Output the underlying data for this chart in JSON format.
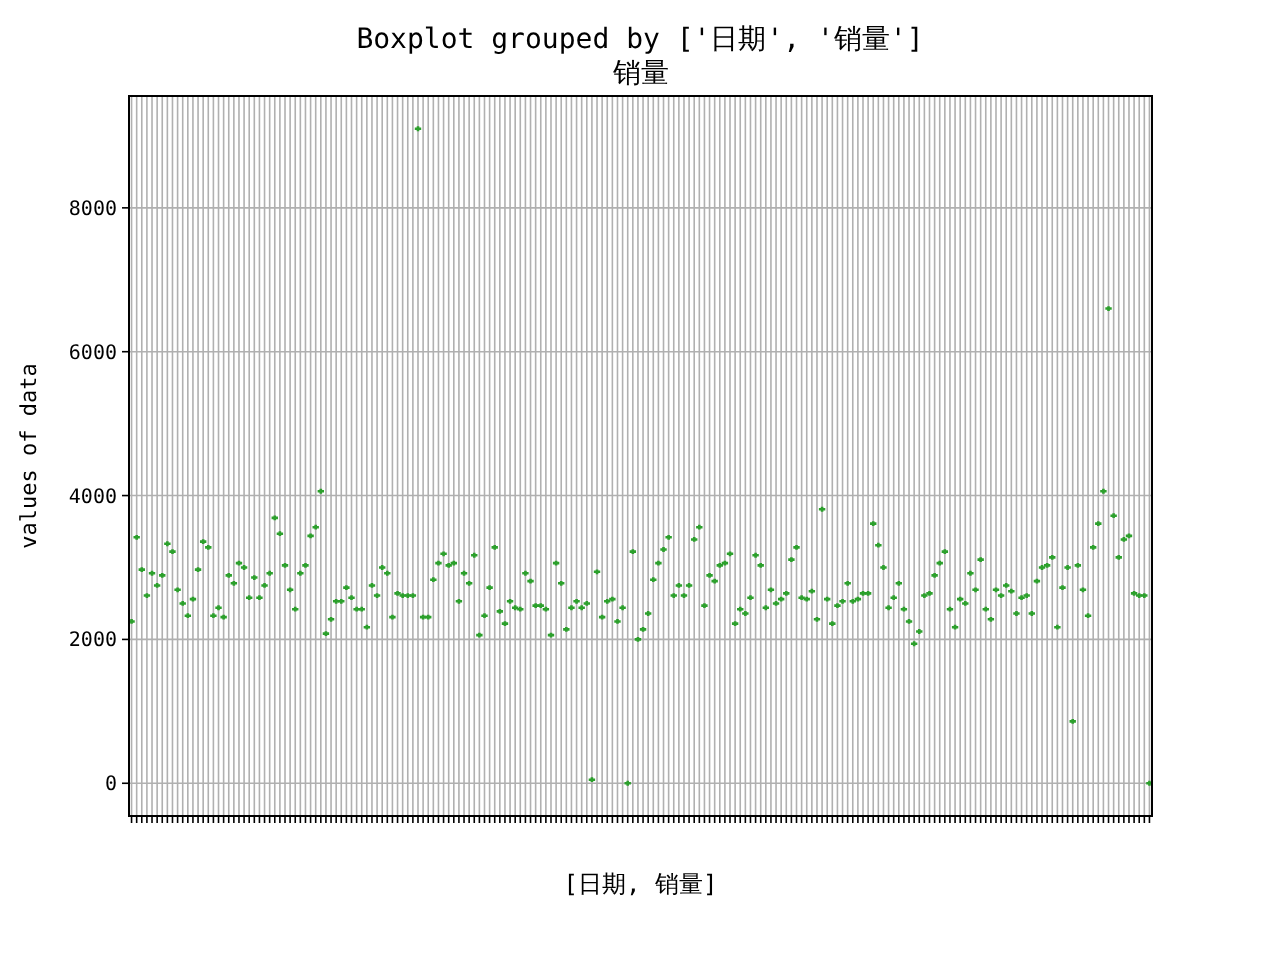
{
  "chart_data": {
    "type": "scatter",
    "title": "Boxplot grouped by ['日期', '销量']",
    "subtitle": "销量",
    "xlabel": "[日期, 销量]",
    "ylabel": "values of data",
    "categories": [
      null,
      null,
      null,
      null,
      null,
      null,
      null,
      null,
      null,
      null,
      null,
      null,
      null,
      null,
      null,
      null,
      null,
      null,
      null,
      null,
      null,
      null,
      null,
      null,
      null,
      null,
      null,
      null,
      null,
      null,
      null,
      null,
      null,
      null,
      null,
      null,
      null,
      null,
      null,
      null,
      null,
      null,
      null,
      null,
      null,
      null,
      null,
      null,
      null,
      null,
      null,
      null,
      null,
      null,
      null,
      null,
      null,
      null,
      null,
      null,
      null,
      null,
      null,
      null,
      null,
      null,
      null,
      null,
      null,
      null,
      null,
      null,
      null,
      null,
      null,
      null,
      null,
      null,
      null,
      null,
      null,
      null,
      null,
      null,
      null,
      null,
      null,
      null,
      null,
      null,
      null,
      null,
      null,
      null,
      null,
      null,
      null,
      null,
      null,
      null,
      null,
      null,
      null,
      null,
      null,
      null,
      null,
      null,
      null,
      null,
      null,
      null,
      null,
      null,
      null,
      null,
      null,
      null,
      null,
      null,
      null,
      null,
      null,
      null,
      null,
      null,
      null,
      null,
      null,
      null,
      null,
      null,
      null,
      null,
      null,
      null,
      null,
      null,
      null,
      null,
      null,
      null,
      null,
      null,
      null,
      null,
      null,
      null,
      null,
      null,
      null,
      null,
      null,
      null,
      null,
      null,
      null,
      null,
      null,
      null,
      null,
      null,
      null,
      null,
      null,
      null,
      null,
      null,
      null,
      null,
      null,
      null,
      null,
      null,
      null,
      null,
      null,
      null,
      null,
      null,
      null,
      null,
      null,
      null,
      null,
      null,
      null,
      null,
      null,
      null,
      null,
      null,
      null,
      null,
      null,
      null,
      null,
      null,
      null,
      null
    ],
    "values": [
      2250,
      3420,
      2970,
      2610,
      2920,
      2750,
      2890,
      3330,
      3220,
      2690,
      2500,
      2330,
      2560,
      2970,
      3360,
      3280,
      2330,
      2440,
      2310,
      2890,
      2780,
      3060,
      3000,
      2580,
      2860,
      2580,
      2750,
      2920,
      3690,
      3470,
      3030,
      2690,
      2420,
      2920,
      3030,
      3440,
      3560,
      4060,
      2080,
      2280,
      2530,
      2530,
      2720,
      2580,
      2420,
      2420,
      2170,
      2750,
      2610,
      3000,
      2920,
      2310,
      2640,
      2610,
      2610,
      2610,
      9100,
      2310,
      2310,
      2830,
      3060,
      3190,
      3030,
      3060,
      2530,
      2920,
      2780,
      3170,
      2060,
      2330,
      2720,
      3280,
      2390,
      2220,
      2530,
      2440,
      2420,
      2920,
      2810,
      2470,
      2470,
      2420,
      2060,
      3060,
      2780,
      2140,
      2440,
      2530,
      2440,
      2500,
      50,
      2940,
      2310,
      2530,
      2560,
      2250,
      2440,
      0,
      3220,
      2000,
      2140,
      2360,
      2830,
      3060,
      3250,
      3420,
      2610,
      2750,
      2610,
      2750,
      3390,
      3560,
      2470,
      2890,
      2810,
      3030,
      3060,
      3190,
      2220,
      2420,
      2360,
      2580,
      3170,
      3030,
      2440,
      2690,
      2500,
      2560,
      2640,
      3110,
      3280,
      2580,
      2560,
      2670,
      2280,
      3810,
      2560,
      2220,
      2470,
      2530,
      2780,
      2530,
      2560,
      2640,
      2640,
      3610,
      3310,
      3000,
      2440,
      2580,
      2780,
      2420,
      2250,
      1940,
      2110,
      2610,
      2640,
      2890,
      3060,
      3220,
      2420,
      2170,
      2560,
      2500,
      2920,
      2690,
      3110,
      2420,
      2280,
      2690,
      2610,
      2750,
      2670,
      2360,
      2580,
      2610,
      2360,
      2810,
      3000,
      3030,
      3140,
      2170,
      2720,
      3000,
      860,
      3030,
      2690,
      2330,
      3280,
      3610,
      4060,
      6600,
      3720,
      3140,
      3390,
      3440,
      2640,
      2610,
      2610,
      0
    ],
    "color": "#2ca02c",
    "marker": "cross",
    "ylim": [
      -455,
      9555
    ],
    "yticks": [
      0,
      2000,
      4000,
      6000,
      8000
    ],
    "grid": true
  }
}
